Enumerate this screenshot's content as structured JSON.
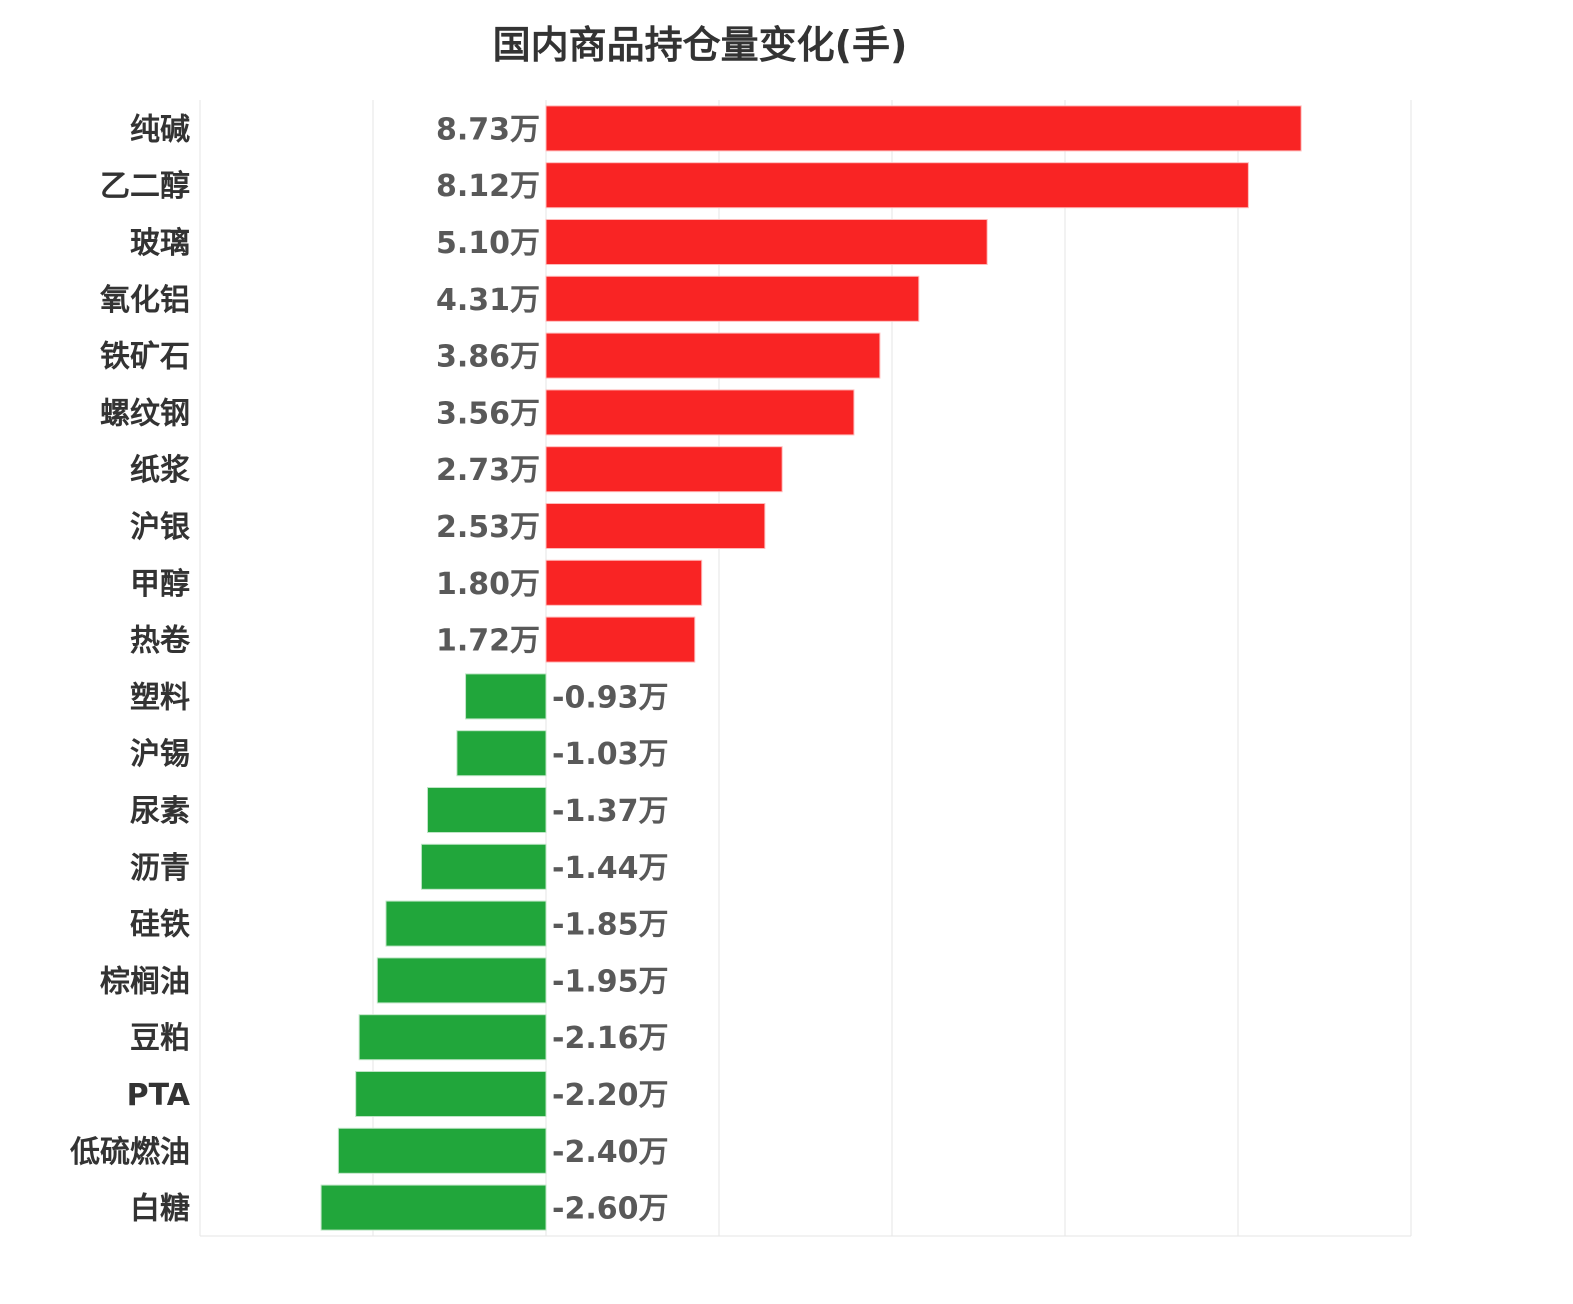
{
  "chart_data": {
    "type": "bar",
    "orientation": "horizontal",
    "title": "国内商品持仓量变化(手)",
    "unit_suffix": "万",
    "categories": [
      "纯碱",
      "乙二醇",
      "玻璃",
      "氧化铝",
      "铁矿石",
      "螺纹钢",
      "纸浆",
      "沪银",
      "甲醇",
      "热卷",
      "塑料",
      "沪锡",
      "尿素",
      "沥青",
      "硅铁",
      "棕榈油",
      "豆粕",
      "PTA",
      "低硫燃油",
      "白糖"
    ],
    "values": [
      8.73,
      8.12,
      5.1,
      4.31,
      3.86,
      3.56,
      2.73,
      2.53,
      1.8,
      1.72,
      -0.93,
      -1.03,
      -1.37,
      -1.44,
      -1.85,
      -1.95,
      -2.16,
      -2.2,
      -2.4,
      -2.6
    ],
    "data_labels": [
      "8.73万",
      "8.12万",
      "5.10万",
      "4.31万",
      "3.86万",
      "3.56万",
      "2.73万",
      "2.53万",
      "1.80万",
      "1.72万",
      "-0.93万",
      "-1.03万",
      "-1.37万",
      "-1.44万",
      "-1.85万",
      "-1.95万",
      "-2.16万",
      "-2.20万",
      "-2.40万",
      "-2.60万"
    ],
    "xlim": [
      -4,
      10
    ],
    "grid_step": 2,
    "grid": true,
    "colors": {
      "positive": "#F92424",
      "negative": "#21A63B",
      "grid": "#E6E6E6",
      "category_text": "#333333",
      "value_text": "#595959"
    }
  }
}
